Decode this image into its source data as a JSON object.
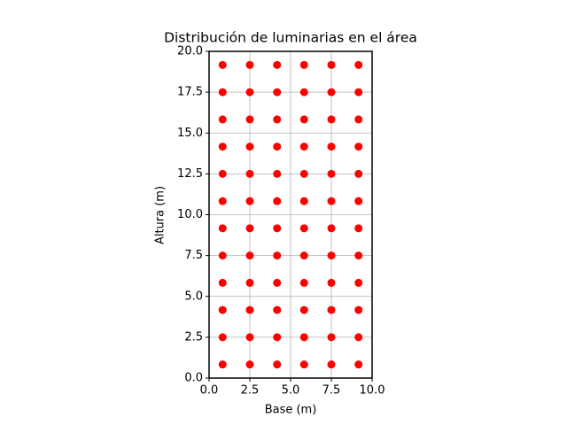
{
  "chart_data": {
    "type": "scatter",
    "title": "Distribución de luminarias en el área",
    "xlabel": "Base (m)",
    "ylabel": "Altura (m)",
    "color": "#ff0000",
    "grid": true,
    "x": [
      0.83,
      2.5,
      4.17,
      5.83,
      7.5,
      9.17,
      0.83,
      2.5,
      4.17,
      5.83,
      7.5,
      9.17,
      0.83,
      2.5,
      4.17,
      5.83,
      7.5,
      9.17,
      0.83,
      2.5,
      4.17,
      5.83,
      7.5,
      9.17,
      0.83,
      2.5,
      4.17,
      5.83,
      7.5,
      9.17,
      0.83,
      2.5,
      4.17,
      5.83,
      7.5,
      9.17,
      0.83,
      2.5,
      4.17,
      5.83,
      7.5,
      9.17,
      0.83,
      2.5,
      4.17,
      5.83,
      7.5,
      9.17,
      0.83,
      2.5,
      4.17,
      5.83,
      7.5,
      9.17,
      0.83,
      2.5,
      4.17,
      5.83,
      7.5,
      9.17,
      0.83,
      2.5,
      4.17,
      5.83,
      7.5,
      9.17,
      0.83,
      2.5,
      4.17,
      5.83,
      7.5,
      9.17
    ],
    "values": [
      0.83,
      0.83,
      0.83,
      0.83,
      0.83,
      0.83,
      2.5,
      2.5,
      2.5,
      2.5,
      2.5,
      2.5,
      4.17,
      4.17,
      4.17,
      4.17,
      4.17,
      4.17,
      5.83,
      5.83,
      5.83,
      5.83,
      5.83,
      5.83,
      7.5,
      7.5,
      7.5,
      7.5,
      7.5,
      7.5,
      9.17,
      9.17,
      9.17,
      9.17,
      9.17,
      9.17,
      10.83,
      10.83,
      10.83,
      10.83,
      10.83,
      10.83,
      12.5,
      12.5,
      12.5,
      12.5,
      12.5,
      12.5,
      14.17,
      14.17,
      14.17,
      14.17,
      14.17,
      14.17,
      15.83,
      15.83,
      15.83,
      15.83,
      15.83,
      15.83,
      17.5,
      17.5,
      17.5,
      17.5,
      17.5,
      17.5,
      19.17,
      19.17,
      19.17,
      19.17,
      19.17,
      19.17
    ],
    "xlim": [
      0,
      10
    ],
    "ylim": [
      0,
      20
    ],
    "xticks": [
      {
        "value": 0,
        "label": "0.0"
      },
      {
        "value": 2.5,
        "label": "2.5"
      },
      {
        "value": 5,
        "label": "5.0"
      },
      {
        "value": 7.5,
        "label": "7.5"
      },
      {
        "value": 10,
        "label": "10.0"
      }
    ],
    "yticks": [
      {
        "value": 0,
        "label": "0.0"
      },
      {
        "value": 2.5,
        "label": "2.5"
      },
      {
        "value": 5,
        "label": "5.0"
      },
      {
        "value": 7.5,
        "label": "7.5"
      },
      {
        "value": 10,
        "label": "10.0"
      },
      {
        "value": 12.5,
        "label": "12.5"
      },
      {
        "value": 15,
        "label": "15.0"
      },
      {
        "value": 17.5,
        "label": "17.5"
      },
      {
        "value": 20,
        "label": "20.0"
      }
    ]
  }
}
